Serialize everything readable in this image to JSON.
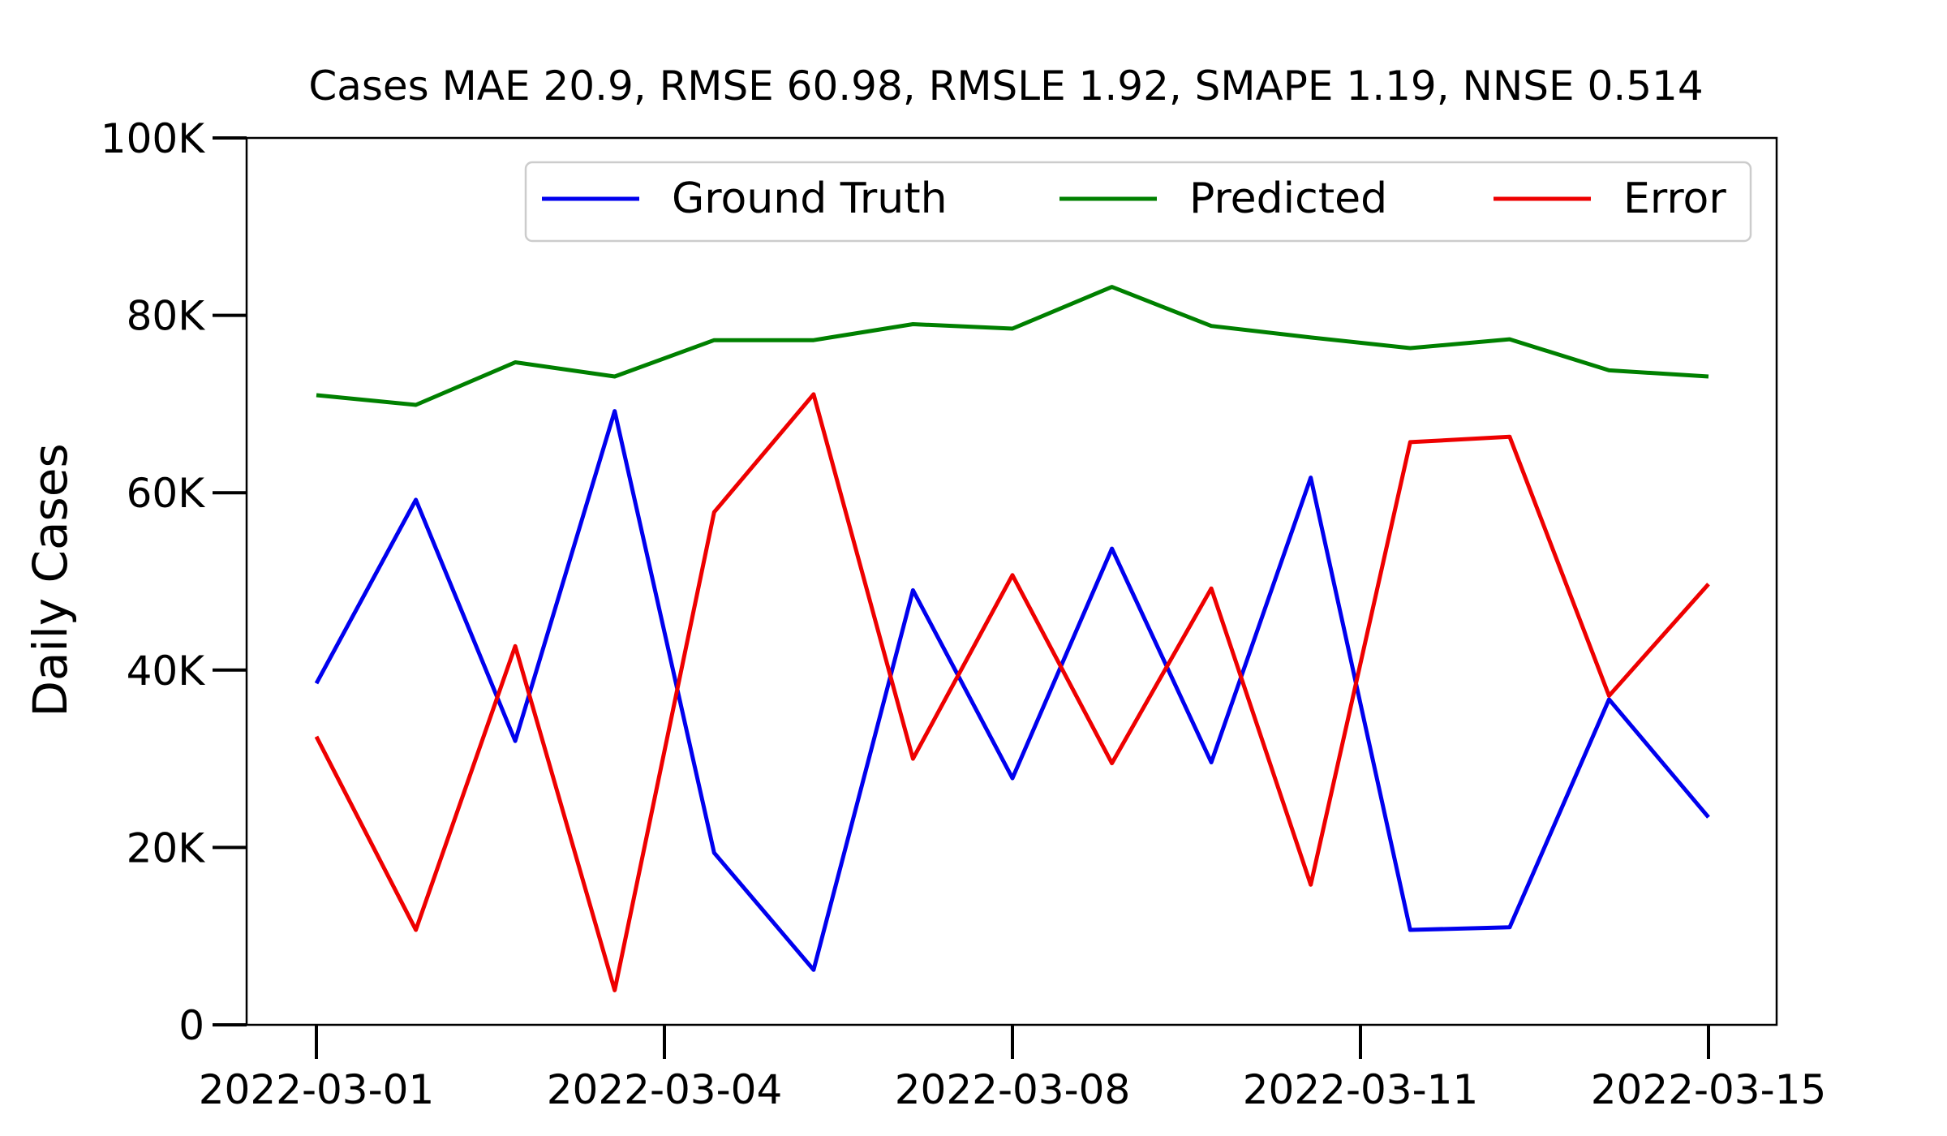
{
  "chart_data": {
    "type": "line",
    "title": "Cases MAE 20.9, RMSE 60.98, RMSLE 1.92, SMAPE 1.19, NNSE 0.514",
    "xlabel": "",
    "ylabel": "Daily Cases",
    "x": [
      "2022-03-01",
      "2022-03-02",
      "2022-03-03",
      "2022-03-04",
      "2022-03-05",
      "2022-03-06",
      "2022-03-07",
      "2022-03-08",
      "2022-03-09",
      "2022-03-10",
      "2022-03-11",
      "2022-03-12",
      "2022-03-13",
      "2022-03-14",
      "2022-03-15"
    ],
    "xticks": [
      "2022-03-01",
      "2022-03-04",
      "2022-03-08",
      "2022-03-11",
      "2022-03-15"
    ],
    "xtick_index": [
      0,
      3.5,
      7,
      10.5,
      14
    ],
    "yticks": [
      0,
      20000,
      40000,
      60000,
      80000,
      100000
    ],
    "ytick_labels": [
      "0",
      "20K",
      "40K",
      "60K",
      "80K",
      "100K"
    ],
    "ylim": [
      0,
      100000
    ],
    "grid": false,
    "legend_position": "top-right",
    "series": [
      {
        "name": "Ground Truth",
        "color": "#0000ee",
        "values": [
          38500,
          59200,
          32000,
          69200,
          19400,
          6200,
          49000,
          27800,
          53700,
          29600,
          61700,
          10700,
          11000,
          36700,
          23400
        ]
      },
      {
        "name": "Predicted",
        "color": "#008000",
        "values": [
          71000,
          69900,
          74700,
          73100,
          77200,
          77200,
          79000,
          78500,
          83200,
          78800,
          77500,
          76300,
          77300,
          73800,
          73100
        ]
      },
      {
        "name": "Error",
        "color": "#ee0000",
        "values": [
          32500,
          10700,
          42700,
          3900,
          57800,
          71100,
          30000,
          50700,
          29500,
          49200,
          15800,
          65700,
          66300,
          37100,
          49700
        ]
      }
    ]
  }
}
